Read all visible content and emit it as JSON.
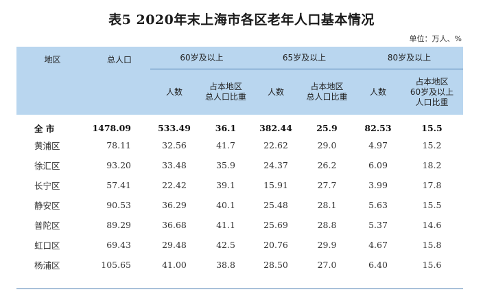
{
  "title": "表5   2020年末上海市各区老年人口基本情况",
  "unit": "单位：万人、%",
  "header": {
    "region": "地区",
    "total_pop": "总人口",
    "group_60": "60岁及以上",
    "group_65": "65岁及以上",
    "group_80": "80岁及以上",
    "count": "人数",
    "share_total": "占本地区\n总人口比重",
    "share_60": "占本地区\n60岁及以上\n人口比重"
  },
  "rows": [
    {
      "name": "全  市",
      "total": "1478.09",
      "p60": "533.49",
      "s60": "36.1",
      "p65": "382.44",
      "s65": "25.9",
      "p80": "82.53",
      "s80": "15.5"
    },
    {
      "name": "黄浦区",
      "total": "78.11",
      "p60": "32.56",
      "s60": "41.7",
      "p65": "22.62",
      "s65": "29.0",
      "p80": "4.97",
      "s80": "15.2"
    },
    {
      "name": "徐汇区",
      "total": "93.20",
      "p60": "33.48",
      "s60": "35.9",
      "p65": "24.37",
      "s65": "26.2",
      "p80": "6.09",
      "s80": "18.2"
    },
    {
      "name": "长宁区",
      "total": "57.41",
      "p60": "22.42",
      "s60": "39.1",
      "p65": "15.91",
      "s65": "27.7",
      "p80": "3.99",
      "s80": "17.8"
    },
    {
      "name": "静安区",
      "total": "90.53",
      "p60": "36.29",
      "s60": "40.1",
      "p65": "25.48",
      "s65": "28.1",
      "p80": "5.63",
      "s80": "15.5"
    },
    {
      "name": "普陀区",
      "total": "89.29",
      "p60": "36.68",
      "s60": "41.1",
      "p65": "25.69",
      "s65": "28.8",
      "p80": "5.37",
      "s80": "14.6"
    },
    {
      "name": "虹口区",
      "total": "69.43",
      "p60": "29.48",
      "s60": "42.5",
      "p65": "20.76",
      "s65": "29.9",
      "p80": "4.67",
      "s80": "15.8"
    },
    {
      "name": "杨浦区",
      "total": "105.65",
      "p60": "41.00",
      "s60": "38.8",
      "p65": "28.50",
      "s65": "27.0",
      "p80": "6.40",
      "s80": "15.6"
    }
  ]
}
